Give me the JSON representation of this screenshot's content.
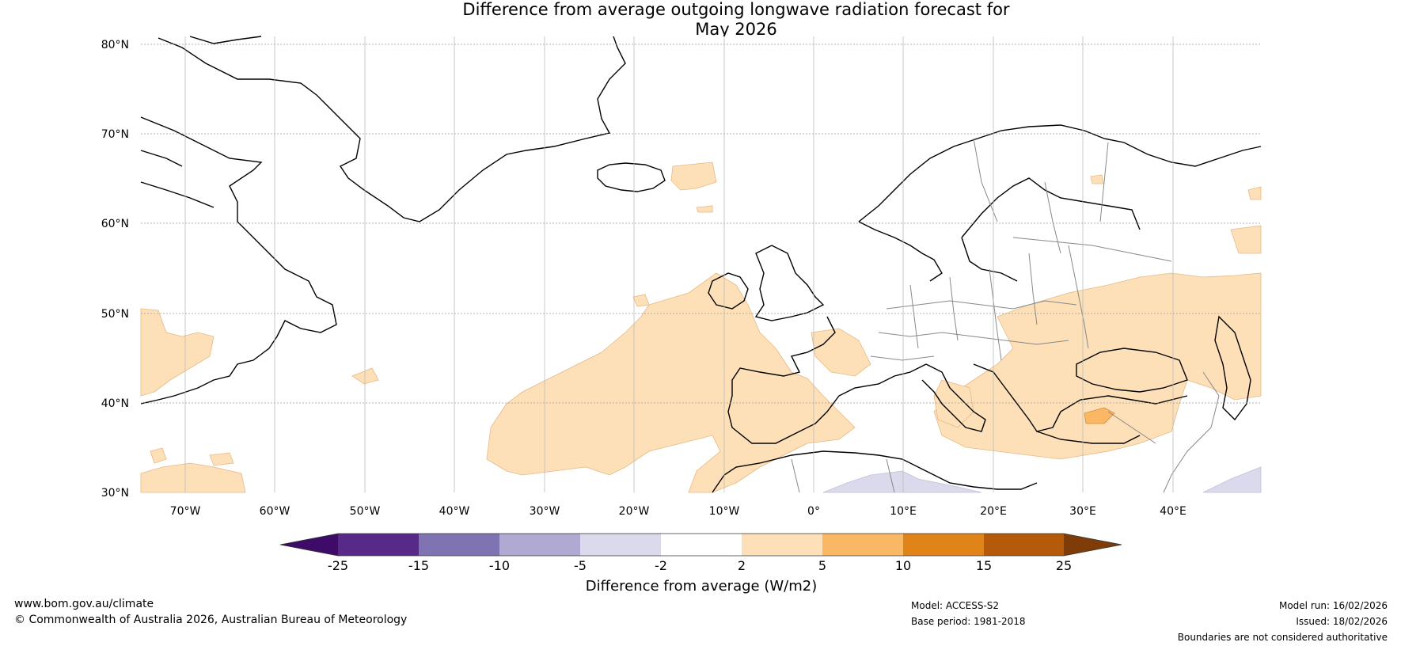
{
  "title_line1": "Difference from average outgoing longwave radiation forecast for",
  "title_line2": "May 2026",
  "lat_labels": [
    "80°N",
    "70°N",
    "60°N",
    "50°N",
    "40°N",
    "30°N"
  ],
  "lon_labels": [
    "70°W",
    "60°W",
    "50°W",
    "40°W",
    "30°W",
    "20°W",
    "10°W",
    "0°",
    "10°E",
    "20°E",
    "30°E",
    "40°E"
  ],
  "legend": {
    "tick_labels": [
      "-25",
      "-15",
      "-10",
      "-5",
      "-2",
      "2",
      "5",
      "10",
      "15",
      "25"
    ],
    "label": "Difference from average (W/m2)",
    "colors": [
      "#3f0b68",
      "#572a8a",
      "#8073b1",
      "#b0a9d2",
      "#dadaec",
      "#ffffff",
      "#fde0b8",
      "#fbb864",
      "#e08419",
      "#b45a0a",
      "#7f3b08"
    ]
  },
  "footer": {
    "website": "www.bom.gov.au/climate",
    "copyright": "© Commonwealth of Australia 2026, Australian Bureau of Meteorology",
    "model": "Model: ACCESS-S2",
    "base_period": "Base period: 1981-2018",
    "model_run": "Model run: 16/02/2026",
    "issued": "Issued: 18/02/2026",
    "disclaimer": "Boundaries are not considered authoritative"
  }
}
